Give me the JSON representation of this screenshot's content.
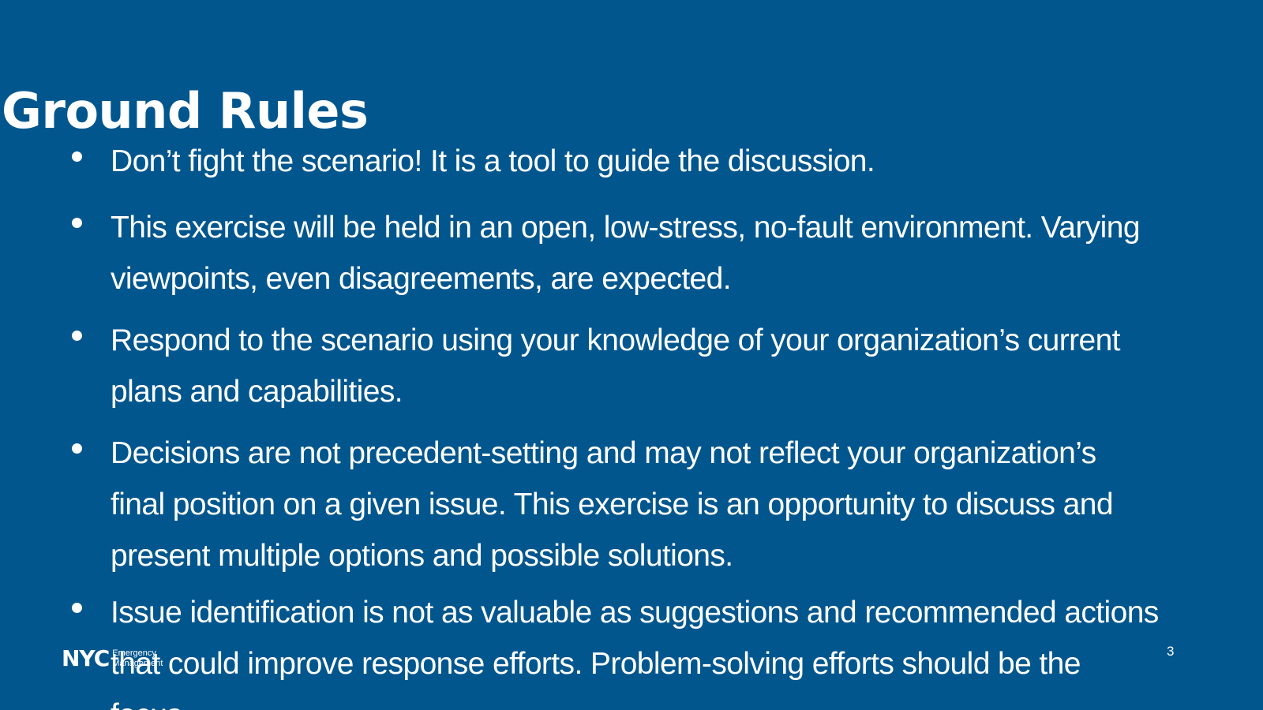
{
  "slide": {
    "title": "Ground Rules",
    "bullets": [
      "Don’t fight the scenario! It is a tool to guide the discussion.",
      "This exercise will be held in an open, low-stress, no-fault environment. Varying\nviewpoints, even disagreements, are expected.",
      "Respond to the scenario using your knowledge of your organization’s current\nplans and capabilities.",
      "Decisions are not precedent-setting and may not reflect your organization’s\nfinal position on a given issue. This exercise is an opportunity to discuss and\npresent multiple options and possible solutions.",
      "Issue identification is not as valuable as suggestions and recommended actions\nthat could improve response efforts. Problem-solving efforts should be the\nfocus."
    ],
    "page_number": "3"
  },
  "footer": {
    "logo_mark": "NYC",
    "logo_line1": "Emergency",
    "logo_line2": "Management"
  },
  "colors": {
    "background": "#02568e",
    "text": "#ffffff"
  }
}
